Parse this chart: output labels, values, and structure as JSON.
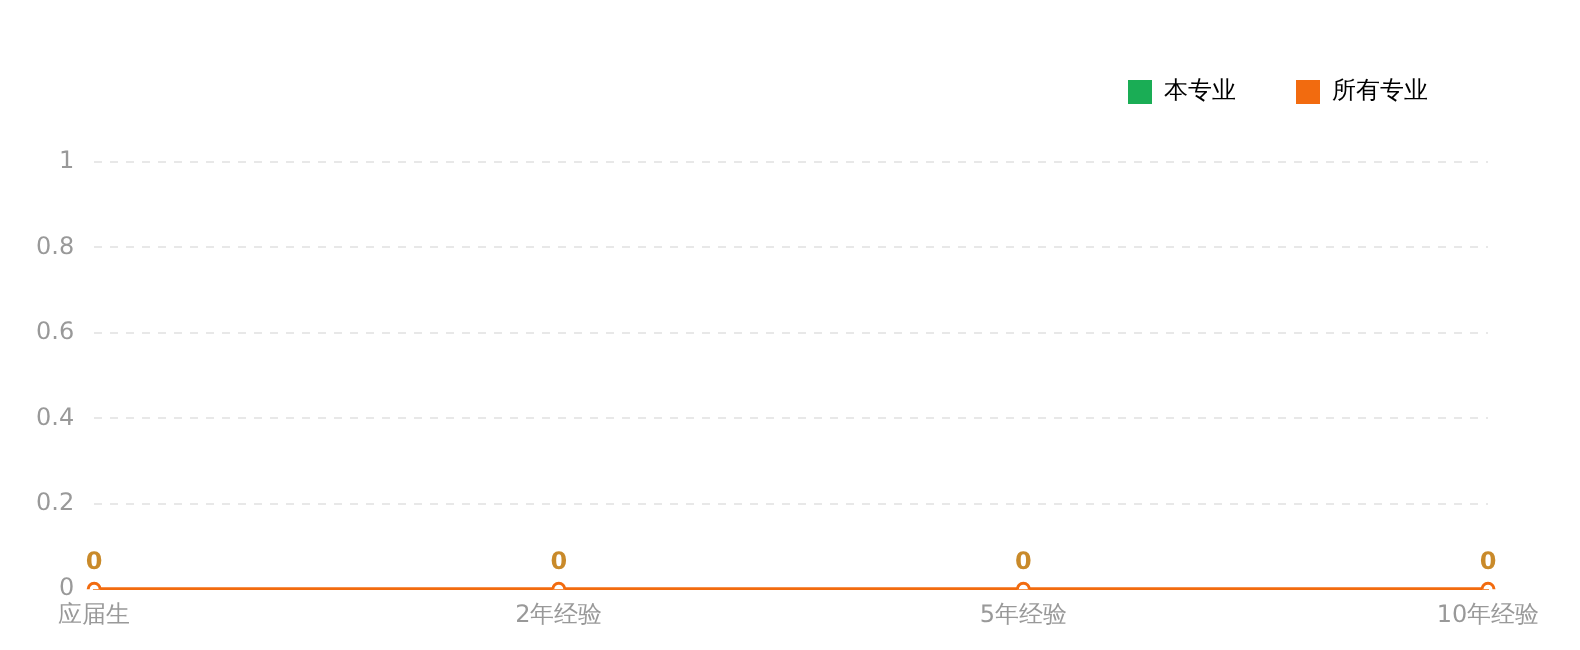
{
  "chart_data": {
    "type": "line",
    "categories": [
      "应届生",
      "2年经验",
      "5年经验",
      "10年经验"
    ],
    "series": [
      {
        "name": "本专业",
        "color": "#1aad55",
        "values": [
          null,
          null,
          null,
          null
        ]
      },
      {
        "name": "所有专业",
        "color": "#f26b0f",
        "values": [
          0,
          0,
          0,
          0
        ]
      }
    ],
    "ylim": [
      0,
      1
    ],
    "yticks": [
      0,
      0.2,
      0.4,
      0.6,
      0.8,
      1
    ],
    "grid": "y",
    "legend": "top right",
    "marker": "circle",
    "line_style": "solid",
    "data_labels": true
  }
}
